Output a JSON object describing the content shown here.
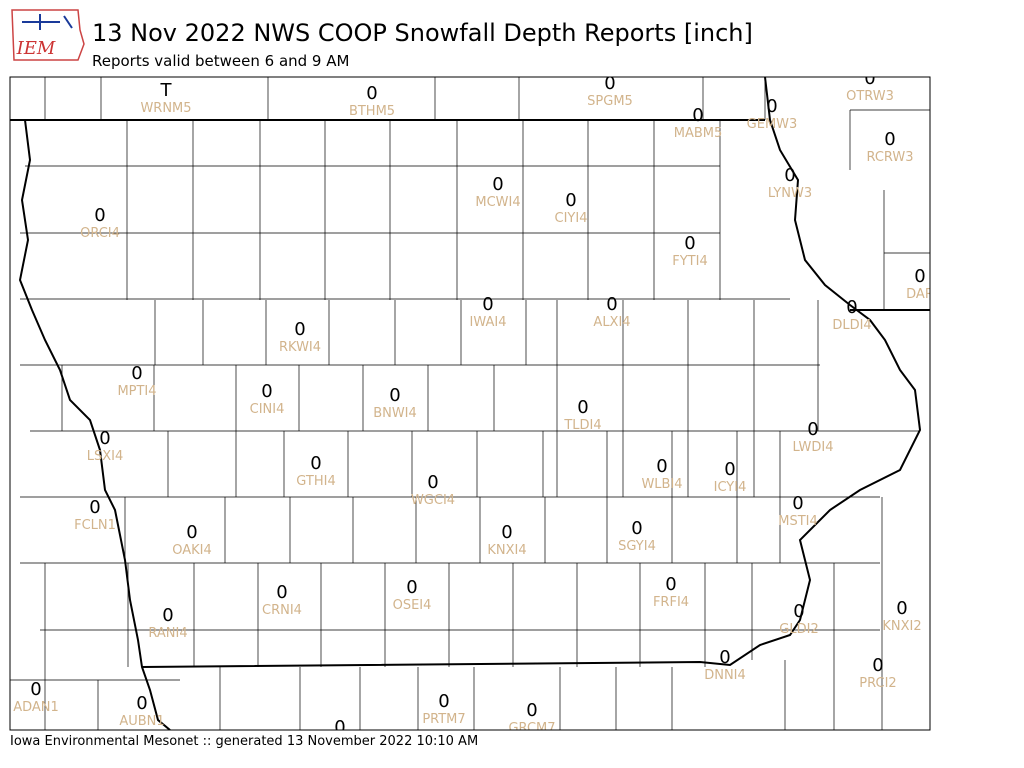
{
  "header": {
    "logo": "IEM",
    "title": "13 Nov 2022 NWS COOP Snowfall Depth Reports [inch]",
    "subtitle": "Reports valid between 6 and 9 AM"
  },
  "stations": [
    {
      "value": "T",
      "id": "WRNM5"
    },
    {
      "value": "0",
      "id": "BTHM5"
    },
    {
      "value": "0",
      "id": "SPGM5"
    },
    {
      "value": "0",
      "id": "OTRW3"
    },
    {
      "value": "0",
      "id": "MABM5"
    },
    {
      "value": "0",
      "id": "GEMW3"
    },
    {
      "value": "0",
      "id": "RCRW3"
    },
    {
      "value": "0",
      "id": "LYNW3"
    },
    {
      "value": "0",
      "id": "MCWI4"
    },
    {
      "value": "0",
      "id": "CIYI4"
    },
    {
      "value": "0",
      "id": "ORCI4"
    },
    {
      "value": "0",
      "id": "FYTI4"
    },
    {
      "value": "0",
      "id": "DAR"
    },
    {
      "value": "0",
      "id": "DLDI4"
    },
    {
      "value": "0",
      "id": "IWAI4"
    },
    {
      "value": "0",
      "id": "ALXI4"
    },
    {
      "value": "0",
      "id": "RKWI4"
    },
    {
      "value": "0",
      "id": "MPTI4"
    },
    {
      "value": "0",
      "id": "CINI4"
    },
    {
      "value": "0",
      "id": "BNWI4"
    },
    {
      "value": "0",
      "id": "TLDI4"
    },
    {
      "value": "0",
      "id": "LWDI4"
    },
    {
      "value": "0",
      "id": "LSXI4"
    },
    {
      "value": "0",
      "id": "GTHI4"
    },
    {
      "value": "0",
      "id": "WGCI4"
    },
    {
      "value": "0",
      "id": "WLBI4"
    },
    {
      "value": "0",
      "id": "ICYI4"
    },
    {
      "value": "0",
      "id": "MSTI4"
    },
    {
      "value": "0",
      "id": "FCLN1"
    },
    {
      "value": "0",
      "id": "OAKI4"
    },
    {
      "value": "0",
      "id": "KNXI4"
    },
    {
      "value": "0",
      "id": "SGYI4"
    },
    {
      "value": "0",
      "id": "FRFI4"
    },
    {
      "value": "0",
      "id": "OSEI4"
    },
    {
      "value": "0",
      "id": "CRNI4"
    },
    {
      "value": "0",
      "id": "RANI4"
    },
    {
      "value": "0",
      "id": "GLDI2"
    },
    {
      "value": "0",
      "id": "KNXI2"
    },
    {
      "value": "0",
      "id": "DNNI4"
    },
    {
      "value": "0",
      "id": "PRCI2"
    },
    {
      "value": "0",
      "id": "ADAN1"
    },
    {
      "value": "0",
      "id": "AUBN1"
    },
    {
      "value": "0",
      "id": "PRTM7"
    },
    {
      "value": "0",
      "id": "GRCM7"
    },
    {
      "value": "0"
    }
  ],
  "footer": "Iowa Environmental Mesonet :: generated 13 November 2022 10:10 AM"
}
